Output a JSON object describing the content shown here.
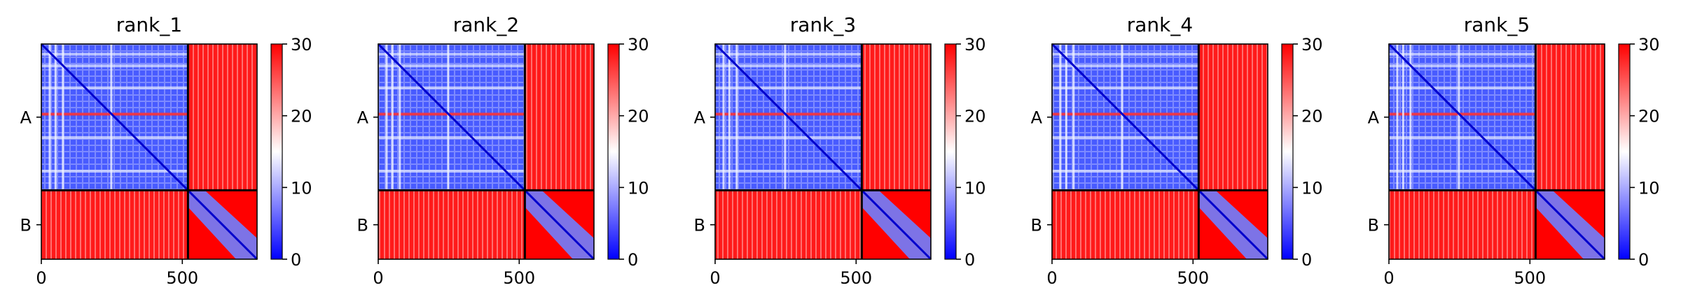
{
  "chart_data": [
    {
      "type": "heatmap",
      "title": "rank_1",
      "x_ticks": [
        0,
        500
      ],
      "xlim": [
        0,
        765
      ],
      "chains": [
        {
          "name": "A",
          "start": 0,
          "end": 520
        },
        {
          "name": "B",
          "start": 520,
          "end": 765
        }
      ],
      "colorbar": {
        "min": 0,
        "max": 30,
        "ticks": [
          0,
          10,
          20,
          30
        ],
        "colormap": "bwr"
      }
    },
    {
      "type": "heatmap",
      "title": "rank_2",
      "x_ticks": [
        0,
        500
      ],
      "xlim": [
        0,
        765
      ],
      "chains": [
        {
          "name": "A",
          "start": 0,
          "end": 520
        },
        {
          "name": "B",
          "start": 520,
          "end": 765
        }
      ],
      "colorbar": {
        "min": 0,
        "max": 30,
        "ticks": [
          0,
          10,
          20,
          30
        ],
        "colormap": "bwr"
      }
    },
    {
      "type": "heatmap",
      "title": "rank_3",
      "x_ticks": [
        0,
        500
      ],
      "xlim": [
        0,
        765
      ],
      "chains": [
        {
          "name": "A",
          "start": 0,
          "end": 520
        },
        {
          "name": "B",
          "start": 520,
          "end": 765
        }
      ],
      "colorbar": {
        "min": 0,
        "max": 30,
        "ticks": [
          0,
          10,
          20,
          30
        ],
        "colormap": "bwr"
      }
    },
    {
      "type": "heatmap",
      "title": "rank_4",
      "x_ticks": [
        0,
        500
      ],
      "xlim": [
        0,
        765
      ],
      "chains": [
        {
          "name": "A",
          "start": 0,
          "end": 520
        },
        {
          "name": "B",
          "start": 520,
          "end": 765
        }
      ],
      "colorbar": {
        "min": 0,
        "max": 30,
        "ticks": [
          0,
          10,
          20,
          30
        ],
        "colormap": "bwr"
      }
    },
    {
      "type": "heatmap",
      "title": "rank_5",
      "x_ticks": [
        0,
        500
      ],
      "xlim": [
        0,
        765
      ],
      "chains": [
        {
          "name": "A",
          "start": 0,
          "end": 520
        },
        {
          "name": "B",
          "start": 520,
          "end": 765
        }
      ],
      "colorbar": {
        "min": 0,
        "max": 30,
        "ticks": [
          0,
          10,
          20,
          30
        ],
        "colormap": "bwr"
      }
    }
  ],
  "colors": {
    "low": "#0000ff",
    "mid": "#ffffff",
    "high": "#ff0000",
    "axis": "#000000"
  }
}
